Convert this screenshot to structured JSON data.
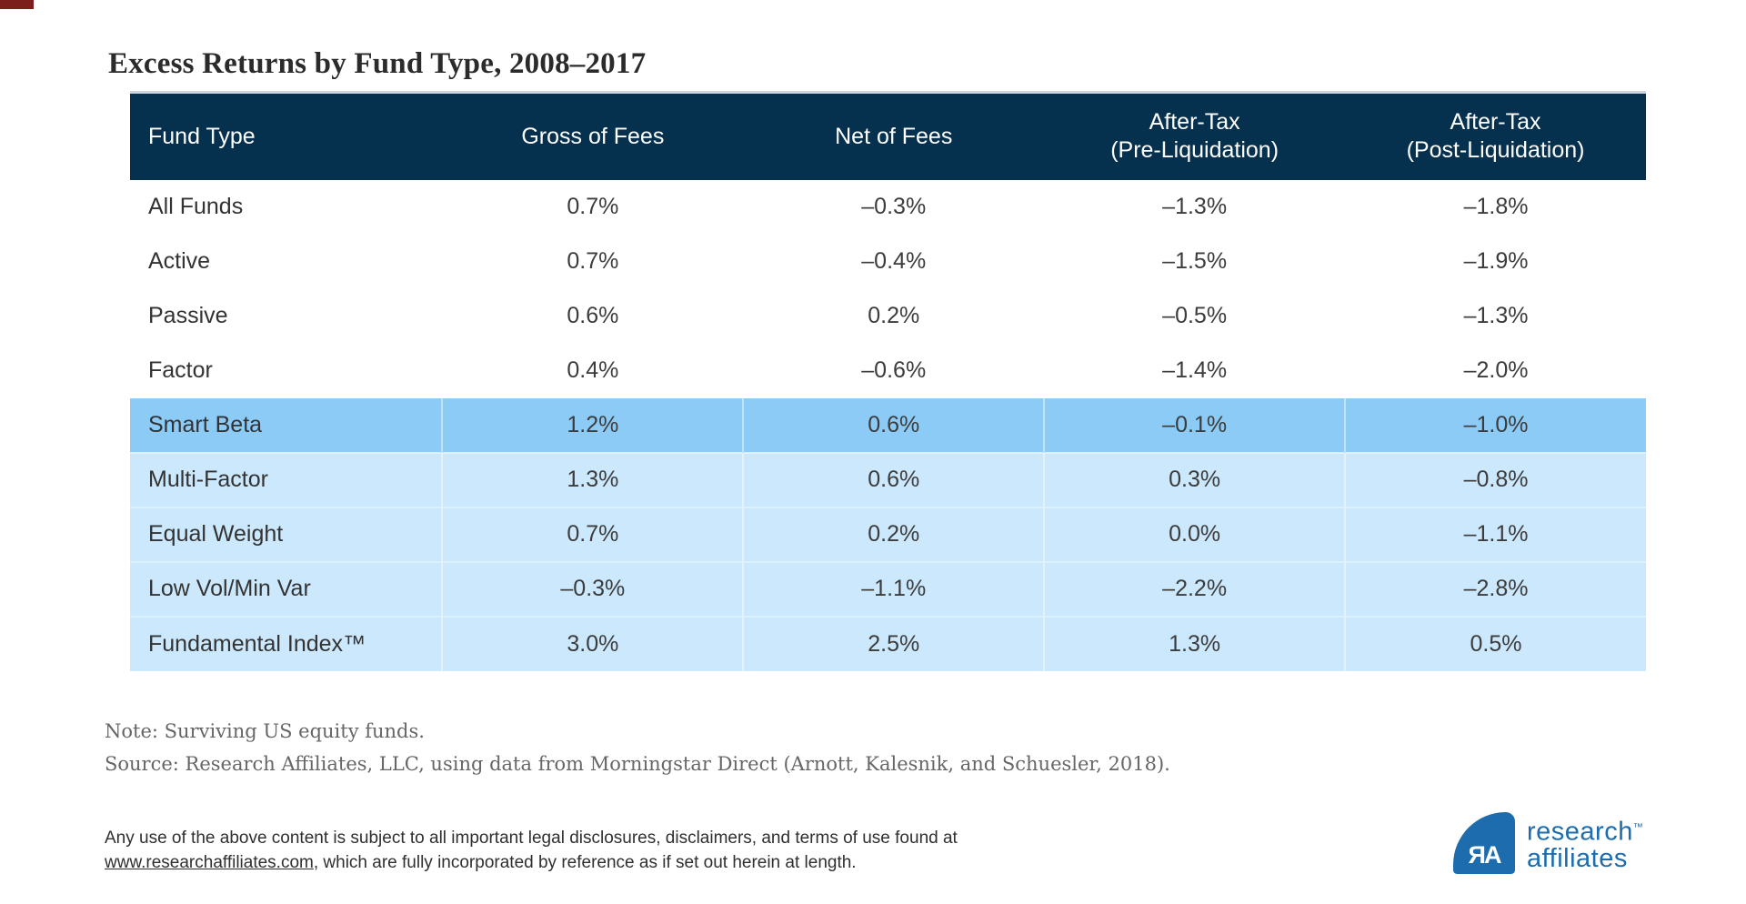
{
  "title": "Excess Returns by Fund Type, 2008–2017",
  "table": {
    "columns": [
      {
        "label": "Fund Type"
      },
      {
        "label": "Gross of Fees"
      },
      {
        "label": "Net of Fees"
      },
      {
        "top": "After-Tax",
        "bottom": "(Pre-Liquidation)"
      },
      {
        "top": "After-Tax",
        "bottom": "(Post-Liquidation)"
      }
    ],
    "rows": [
      {
        "fund_type": "All Funds",
        "values": [
          "0.7%",
          "–0.3%",
          "–1.3%",
          "–1.8%"
        ],
        "style": "plain"
      },
      {
        "fund_type": "Active",
        "values": [
          "0.7%",
          "–0.4%",
          "–1.5%",
          "–1.9%"
        ],
        "style": "plain"
      },
      {
        "fund_type": "Passive",
        "values": [
          "0.6%",
          "0.2%",
          "–0.5%",
          "–1.3%"
        ],
        "style": "plain"
      },
      {
        "fund_type": "Factor",
        "values": [
          "0.4%",
          "–0.6%",
          "–1.4%",
          "–2.0%"
        ],
        "style": "plain"
      },
      {
        "fund_type": "Smart Beta",
        "values": [
          "1.2%",
          "0.6%",
          "–0.1%",
          "–1.0%"
        ],
        "style": "highlight"
      },
      {
        "fund_type": "Multi-Factor",
        "values": [
          "1.3%",
          "0.6%",
          "0.3%",
          "–0.8%"
        ],
        "style": "tint"
      },
      {
        "fund_type": "Equal Weight",
        "values": [
          "0.7%",
          "0.2%",
          "0.0%",
          "–1.1%"
        ],
        "style": "tint"
      },
      {
        "fund_type": "Low Vol/Min Var",
        "values": [
          "–0.3%",
          "–1.1%",
          "–2.2%",
          "–2.8%"
        ],
        "style": "tint"
      },
      {
        "fund_type": "Fundamental Index™",
        "values": [
          "3.0%",
          "2.5%",
          "1.3%",
          "0.5%"
        ],
        "style": "tint"
      }
    ]
  },
  "notes": {
    "note": "Note: Surviving US equity funds.",
    "source": "Source: Research Affiliates, LLC, using data from Morningstar Direct (Arnott, Kalesnik, and Schuesler, 2018)."
  },
  "legal": {
    "line1": "Any use of the above content is subject to all important legal disclosures, disclaimers, and terms of use found at",
    "link": "www.researchaffiliates.com",
    "line2_rest": ", which are fully incorporated by reference as if set out herein at length."
  },
  "logo": {
    "monogram": "ЯA",
    "name_line1": "research",
    "tm": "™",
    "name_line2": "affiliates"
  },
  "colors": {
    "header_bg": "#05304E",
    "highlight_row": "#8DCBF7",
    "tint_row": "#CCE8FC",
    "tint_sep": "#DFF0FD",
    "logo_blue": "#1C6CAE",
    "title_text": "#2B2B2B",
    "body_text": "#3C3C3C",
    "note_text": "#666666",
    "legal_text": "#2F2F2F",
    "corner_mark": "#7B1E1C"
  }
}
